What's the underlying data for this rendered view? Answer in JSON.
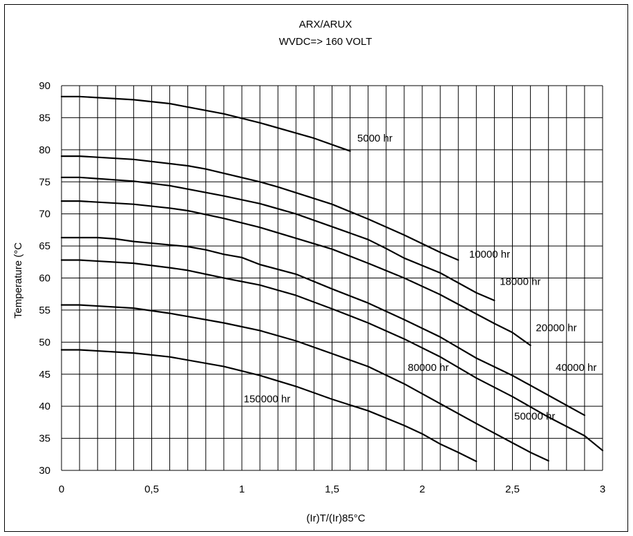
{
  "chart_data": {
    "type": "line",
    "title": "ARX/ARUX",
    "subtitle": "WVDC=> 160 VOLT",
    "xlabel": "(Ir)T/(Ir)85°C",
    "ylabel": "Temperature (°C",
    "xlim": [
      0,
      3
    ],
    "ylim": [
      30,
      90
    ],
    "x_ticks": [
      "0",
      "0,5",
      "1",
      "1,5",
      "2",
      "2,5",
      "3"
    ],
    "y_ticks": [
      "30",
      "35",
      "40",
      "45",
      "50",
      "55",
      "60",
      "65",
      "70",
      "75",
      "80",
      "85",
      "90"
    ],
    "grid": true,
    "series": [
      {
        "name": "5000 hr",
        "points": [
          [
            0,
            88.3
          ],
          [
            0.1,
            88.3
          ],
          [
            0.4,
            87.8
          ],
          [
            0.6,
            87.2
          ],
          [
            0.9,
            85.6
          ],
          [
            1.1,
            84.2
          ],
          [
            1.4,
            81.8
          ],
          [
            1.6,
            79.8
          ]
        ]
      },
      {
        "name": "10000 hr",
        "points": [
          [
            0,
            79
          ],
          [
            0.1,
            79
          ],
          [
            0.4,
            78.5
          ],
          [
            0.7,
            77.5
          ],
          [
            0.8,
            77
          ],
          [
            1.1,
            75
          ],
          [
            1.2,
            74.2
          ],
          [
            1.5,
            71.5
          ],
          [
            1.7,
            69.2
          ],
          [
            1.9,
            66.7
          ],
          [
            2.1,
            64
          ],
          [
            2.2,
            62.8
          ]
        ]
      },
      {
        "name": "18000 hr",
        "points": [
          [
            0,
            75.7
          ],
          [
            0.1,
            75.7
          ],
          [
            0.4,
            75.1
          ],
          [
            0.6,
            74.4
          ],
          [
            0.9,
            72.8
          ],
          [
            1.1,
            71.6
          ],
          [
            1.3,
            70
          ],
          [
            1.5,
            68
          ],
          [
            1.7,
            66
          ],
          [
            1.8,
            64.6
          ],
          [
            1.9,
            63.1
          ],
          [
            2.1,
            60.8
          ],
          [
            2.3,
            57.7
          ],
          [
            2.4,
            56.5
          ]
        ]
      },
      {
        "name": "20000 hr",
        "points": [
          [
            0,
            72
          ],
          [
            0.1,
            72
          ],
          [
            0.4,
            71.5
          ],
          [
            0.6,
            70.9
          ],
          [
            0.7,
            70.5
          ],
          [
            0.9,
            69.3
          ],
          [
            1.1,
            67.9
          ],
          [
            1.3,
            66.2
          ],
          [
            1.5,
            64.5
          ],
          [
            1.7,
            62.3
          ],
          [
            1.9,
            60
          ],
          [
            2.1,
            57.4
          ],
          [
            2.3,
            54.4
          ],
          [
            2.4,
            52.9
          ],
          [
            2.5,
            51.5
          ],
          [
            2.6,
            49.5
          ]
        ]
      },
      {
        "name": "40000 hr",
        "points": [
          [
            0,
            66.3
          ],
          [
            0.1,
            66.3
          ],
          [
            0.2,
            66.3
          ],
          [
            0.3,
            66.1
          ],
          [
            0.4,
            65.7
          ],
          [
            0.7,
            64.9
          ],
          [
            0.8,
            64.4
          ],
          [
            0.9,
            63.7
          ],
          [
            1.0,
            63.2
          ],
          [
            1.1,
            62.1
          ],
          [
            1.3,
            60.6
          ],
          [
            1.5,
            58.3
          ],
          [
            1.7,
            56.1
          ],
          [
            1.9,
            53.5
          ],
          [
            2.1,
            50.8
          ],
          [
            2.3,
            47.5
          ],
          [
            2.5,
            44.8
          ],
          [
            2.7,
            41.7
          ],
          [
            2.9,
            38.6
          ]
        ]
      },
      {
        "name": "50000 hr",
        "points": [
          [
            0,
            62.8
          ],
          [
            0.1,
            62.8
          ],
          [
            0.4,
            62.3
          ],
          [
            0.6,
            61.6
          ],
          [
            0.7,
            61.2
          ],
          [
            0.9,
            60
          ],
          [
            1.1,
            58.9
          ],
          [
            1.3,
            57.3
          ],
          [
            1.5,
            55.2
          ],
          [
            1.7,
            53
          ],
          [
            1.9,
            50.5
          ],
          [
            2.1,
            47.7
          ],
          [
            2.3,
            44.4
          ],
          [
            2.5,
            41.5
          ],
          [
            2.7,
            38.3
          ],
          [
            2.9,
            35.4
          ],
          [
            3.0,
            33.1
          ]
        ]
      },
      {
        "name": "80000 hr",
        "points": [
          [
            0,
            55.8
          ],
          [
            0.1,
            55.8
          ],
          [
            0.4,
            55.3
          ],
          [
            0.6,
            54.5
          ],
          [
            0.7,
            54
          ],
          [
            0.9,
            53
          ],
          [
            1.1,
            51.8
          ],
          [
            1.3,
            50.2
          ],
          [
            1.5,
            48.2
          ],
          [
            1.7,
            46.2
          ],
          [
            1.9,
            43.5
          ],
          [
            2.1,
            40.4
          ],
          [
            2.3,
            37.3
          ],
          [
            2.5,
            34.3
          ],
          [
            2.6,
            32.8
          ],
          [
            2.7,
            31.5
          ]
        ]
      },
      {
        "name": "150000 hr",
        "points": [
          [
            0,
            48.8
          ],
          [
            0.1,
            48.8
          ],
          [
            0.4,
            48.3
          ],
          [
            0.6,
            47.7
          ],
          [
            0.9,
            46.2
          ],
          [
            1.1,
            44.8
          ],
          [
            1.3,
            43.1
          ],
          [
            1.5,
            41.1
          ],
          [
            1.7,
            39.3
          ],
          [
            1.9,
            37
          ],
          [
            2.0,
            35.7
          ],
          [
            2.1,
            34.1
          ],
          [
            2.2,
            32.8
          ],
          [
            2.3,
            31.4
          ]
        ]
      }
    ],
    "curve_labels": [
      {
        "series": "5000 hr",
        "x": 1.64,
        "y": 81.3
      },
      {
        "series": "10000 hr",
        "x": 2.26,
        "y": 63.2
      },
      {
        "series": "18000 hr",
        "x": 2.43,
        "y": 58.9
      },
      {
        "series": "20000 hr",
        "x": 2.63,
        "y": 51.7
      },
      {
        "series": "40000 hr",
        "x": 2.74,
        "y": 45.5
      },
      {
        "series": "80000 hr",
        "x": 1.92,
        "y": 45.5
      },
      {
        "series": "50000 hr",
        "x": 2.51,
        "y": 37.9
      },
      {
        "series": "150000 hr",
        "x": 1.01,
        "y": 40.6
      }
    ]
  }
}
